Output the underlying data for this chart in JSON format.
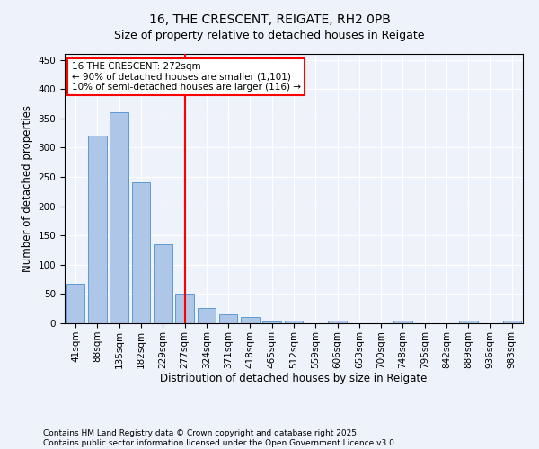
{
  "title": "16, THE CRESCENT, REIGATE, RH2 0PB",
  "subtitle": "Size of property relative to detached houses in Reigate",
  "xlabel": "Distribution of detached houses by size in Reigate",
  "ylabel": "Number of detached properties",
  "categories": [
    "41sqm",
    "88sqm",
    "135sqm",
    "182sqm",
    "229sqm",
    "277sqm",
    "324sqm",
    "371sqm",
    "418sqm",
    "465sqm",
    "512sqm",
    "559sqm",
    "606sqm",
    "653sqm",
    "700sqm",
    "748sqm",
    "795sqm",
    "842sqm",
    "889sqm",
    "936sqm",
    "983sqm"
  ],
  "values": [
    67,
    320,
    360,
    240,
    135,
    50,
    26,
    15,
    11,
    3,
    5,
    0,
    4,
    0,
    0,
    4,
    0,
    0,
    4,
    0,
    4
  ],
  "bar_color": "#aec6e8",
  "bar_edge_color": "#5b9bd5",
  "vline_color": "red",
  "vline_index": 5,
  "annotation_text": "16 THE CRESCENT: 272sqm\n← 90% of detached houses are smaller (1,101)\n10% of semi-detached houses are larger (116) →",
  "annotation_box_color": "white",
  "annotation_box_edge_color": "red",
  "ylim": [
    0,
    460
  ],
  "yticks": [
    0,
    50,
    100,
    150,
    200,
    250,
    300,
    350,
    400,
    450
  ],
  "bg_color": "#eef2fb",
  "footer_text": "Contains HM Land Registry data © Crown copyright and database right 2025.\nContains public sector information licensed under the Open Government Licence v3.0.",
  "title_fontsize": 10,
  "axis_label_fontsize": 8.5,
  "tick_fontsize": 7.5,
  "annotation_fontsize": 7.5,
  "footer_fontsize": 6.5
}
